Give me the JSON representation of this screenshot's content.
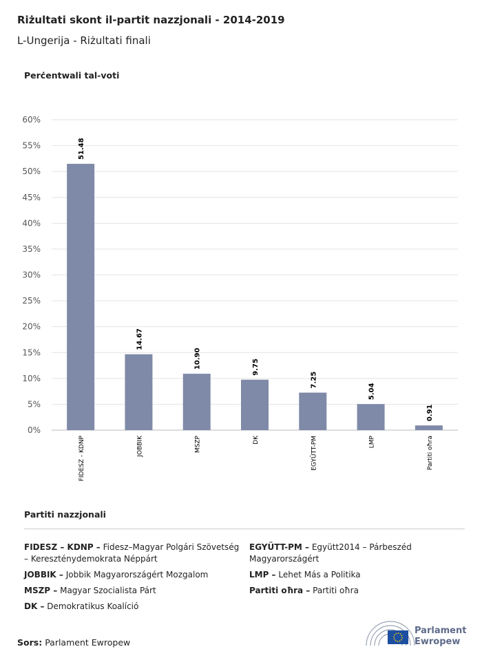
{
  "chart_data": {
    "type": "bar",
    "title": "Riżultati skont il-partit nazzjonali - 2014-2019",
    "subtitle": "L-Ungerija - Riżultati finali",
    "y_label": "Perċentwali tal-voti",
    "categories": [
      "FIDESZ - KDNP",
      "JOBBIK",
      "MSZP",
      "DK",
      "EGYÜTT-PM",
      "LMP",
      "Partiti oħra"
    ],
    "values": [
      51.48,
      14.67,
      10.9,
      9.75,
      7.25,
      5.04,
      0.91
    ],
    "value_labels": [
      "51.48",
      "14.67",
      "10.90",
      "9.75",
      "7.25",
      "5.04",
      "0.91"
    ],
    "color": "#7f8aa8",
    "ylim": [
      0,
      60
    ],
    "yticks": [
      {
        "value": 0,
        "label": "0%"
      },
      {
        "value": 5,
        "label": "5%"
      },
      {
        "value": 10,
        "label": "10%"
      },
      {
        "value": 15,
        "label": "15%"
      },
      {
        "value": 20,
        "label": "20%"
      },
      {
        "value": 25,
        "label": "25%"
      },
      {
        "value": 30,
        "label": "30%"
      },
      {
        "value": 35,
        "label": "35%"
      },
      {
        "value": 40,
        "label": "40%"
      },
      {
        "value": 45,
        "label": "45%"
      },
      {
        "value": 50,
        "label": "50%"
      },
      {
        "value": 55,
        "label": "55%"
      },
      {
        "value": 60,
        "label": "60%"
      }
    ],
    "grid": true
  },
  "legend": {
    "title": "Partiti nazzjonali",
    "columns": [
      [
        {
          "abbr": "FIDESZ – KDNP –",
          "name": "Fidesz–Magyar Polgári Szövetség – Kereszténydemokrata Néppárt"
        },
        {
          "abbr": "JOBBIK –",
          "name": "Jobbik Magyarországért Mozgalom"
        },
        {
          "abbr": "MSZP –",
          "name": "Magyar Szocialista Párt"
        },
        {
          "abbr": "DK –",
          "name": "Demokratikus Koalíció"
        }
      ],
      [
        {
          "abbr": "EGYÜTT-PM –",
          "name": "Együtt2014 – Párbeszéd Magyarországért"
        },
        {
          "abbr": "LMP –",
          "name": "Lehet Más a Politika"
        },
        {
          "abbr": "Partiti oħra –",
          "name": "Partiti oħra"
        }
      ]
    ]
  },
  "source": {
    "label": "Sors:",
    "text": "Parlament Ewropew"
  },
  "logo": {
    "line1": "Parlament",
    "line2": "Ewropew"
  }
}
